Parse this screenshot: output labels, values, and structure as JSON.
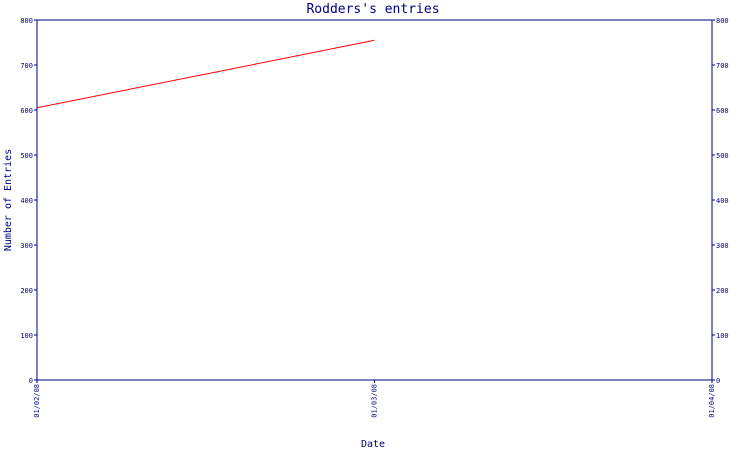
{
  "chart_data": {
    "type": "line",
    "title": "Rodders's entries",
    "xlabel": "Date",
    "ylabel": "Number of Entries",
    "x_ticks": [
      "01/02/08",
      "01/03/08",
      "01/04/08"
    ],
    "y_ticks": [
      "0",
      "100",
      "200",
      "300",
      "400",
      "500",
      "600",
      "700",
      "800"
    ],
    "ylim": [
      0,
      800
    ],
    "series": [
      {
        "color": "#ff0000",
        "x": [
          "2008-01-02",
          "2008-01-03"
        ],
        "values": [
          605,
          755
        ]
      }
    ],
    "axis_color": "#000080",
    "grid": false,
    "right_axis_mirror": true
  }
}
